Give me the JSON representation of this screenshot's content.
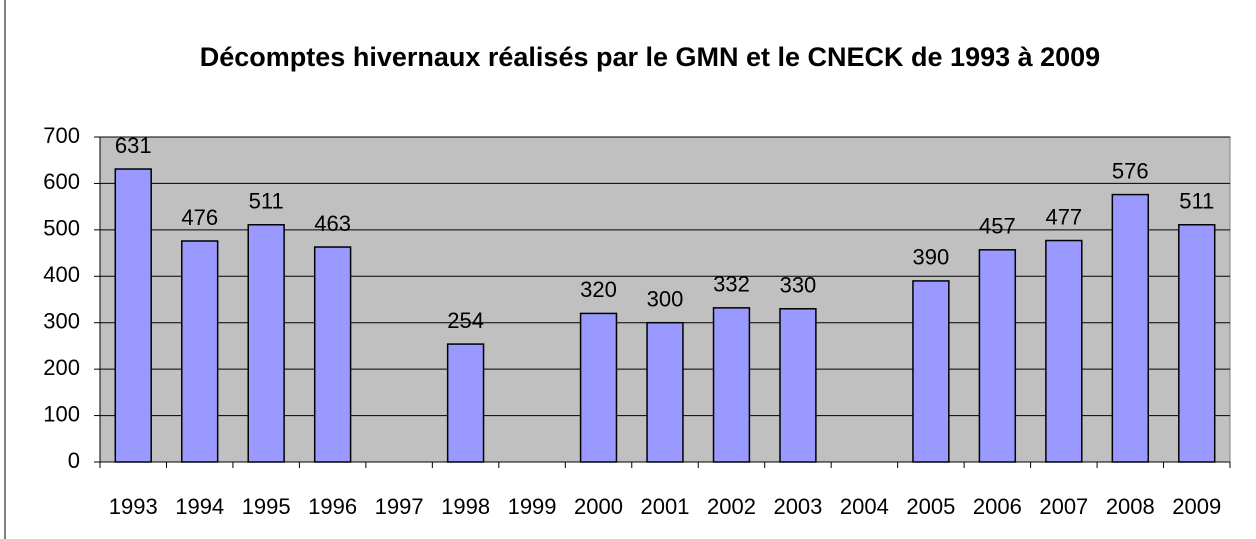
{
  "chart_data": {
    "type": "bar",
    "title": "Décomptes hivernaux réalisés par le GMN et le CNECK de 1993 à 2009",
    "categories": [
      "1993",
      "1994",
      "1995",
      "1996",
      "1997",
      "1998",
      "1999",
      "2000",
      "2001",
      "2002",
      "2003",
      "2004",
      "2005",
      "2006",
      "2007",
      "2008",
      "2009"
    ],
    "values": [
      631,
      476,
      511,
      463,
      null,
      254,
      null,
      320,
      300,
      332,
      330,
      null,
      390,
      457,
      477,
      576,
      511
    ],
    "color": "#9999ff",
    "ylim": [
      0,
      700
    ],
    "yticks": [
      0,
      100,
      200,
      300,
      400,
      500,
      600,
      700
    ],
    "grid": true
  }
}
